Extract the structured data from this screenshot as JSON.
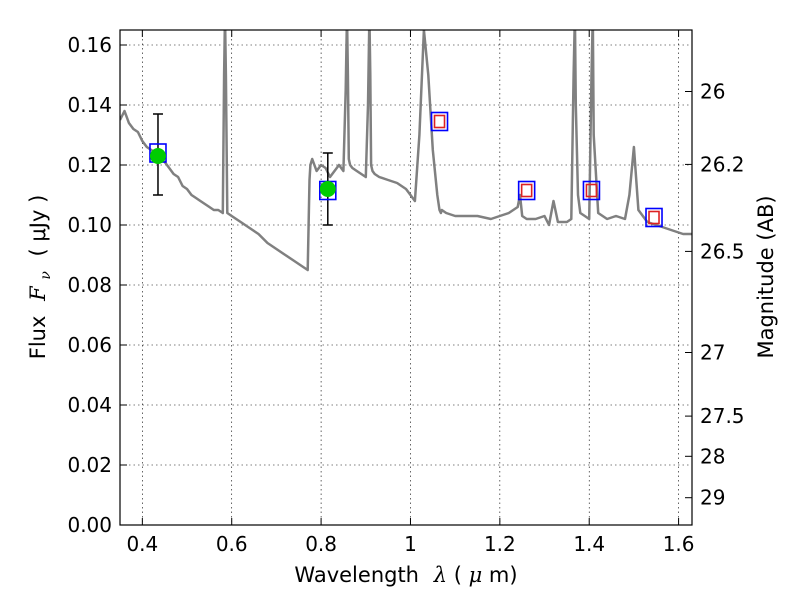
{
  "chart_data": {
    "type": "scatter",
    "title": "",
    "xlabel": {
      "prefix": "Wavelength",
      "symbol": "λ",
      "unit_open": " (",
      "unit_mu": "μ",
      "unit_rest": "m)"
    },
    "ylabel": {
      "prefix": "Flux",
      "symbol": "F",
      "subscript": "ν",
      "unit": "( μJy )"
    },
    "y2label": "Magnitude (AB)",
    "xlim": [
      0.35,
      1.63
    ],
    "ylim": [
      0.0,
      0.165
    ],
    "xticks": [
      0.4,
      0.6,
      0.8,
      1.0,
      1.2,
      1.4,
      1.6
    ],
    "xtick_labels": [
      "0.4",
      "0.6",
      "0.8",
      "1",
      "1.2",
      "1.4",
      "1.6"
    ],
    "yticks": [
      0.0,
      0.02,
      0.04,
      0.06,
      0.08,
      0.1,
      0.12,
      0.14,
      0.16
    ],
    "ytick_labels": [
      "0.00",
      "0.02",
      "0.04",
      "0.06",
      "0.08",
      "0.10",
      "0.12",
      "0.14",
      "0.16"
    ],
    "y2ticks": [
      {
        "flux": 0.1445,
        "label": "26"
      },
      {
        "flux": 0.1202,
        "label": "26.2"
      },
      {
        "flux": 0.0912,
        "label": "26.5"
      },
      {
        "flux": 0.0575,
        "label": "27"
      },
      {
        "flux": 0.0363,
        "label": "27.5"
      },
      {
        "flux": 0.0229,
        "label": "28"
      },
      {
        "flux": 0.0091,
        "label": "29"
      }
    ],
    "grid": true,
    "series": [
      {
        "type": "line",
        "color": "#808080",
        "x": [
          0.35,
          0.36,
          0.37,
          0.38,
          0.39,
          0.4,
          0.41,
          0.42,
          0.43,
          0.44,
          0.45,
          0.46,
          0.47,
          0.48,
          0.49,
          0.5,
          0.51,
          0.52,
          0.53,
          0.54,
          0.55,
          0.56,
          0.57,
          0.58,
          0.583,
          0.585,
          0.587,
          0.59,
          0.6,
          0.62,
          0.64,
          0.66,
          0.68,
          0.7,
          0.72,
          0.74,
          0.76,
          0.77,
          0.772,
          0.774,
          0.776,
          0.78,
          0.79,
          0.8,
          0.81,
          0.82,
          0.83,
          0.84,
          0.85,
          0.855,
          0.858,
          0.86,
          0.862,
          0.865,
          0.87,
          0.88,
          0.89,
          0.9,
          0.905,
          0.908,
          0.91,
          0.912,
          0.915,
          0.92,
          0.93,
          0.95,
          0.97,
          0.99,
          1.0,
          1.01,
          1.02,
          1.03,
          1.04,
          1.05,
          1.06,
          1.065,
          1.068,
          1.07,
          1.08,
          1.1,
          1.12,
          1.15,
          1.18,
          1.2,
          1.22,
          1.24,
          1.245,
          1.25,
          1.26,
          1.28,
          1.3,
          1.31,
          1.32,
          1.33,
          1.35,
          1.36,
          1.365,
          1.368,
          1.37,
          1.375,
          1.38,
          1.39,
          1.4,
          1.405,
          1.408,
          1.41,
          1.42,
          1.44,
          1.46,
          1.48,
          1.49,
          1.5,
          1.51,
          1.53,
          1.55,
          1.57,
          1.59,
          1.61,
          1.63
        ],
        "y": [
          0.135,
          0.138,
          0.134,
          0.132,
          0.131,
          0.128,
          0.126,
          0.125,
          0.124,
          0.122,
          0.121,
          0.119,
          0.117,
          0.116,
          0.113,
          0.112,
          0.11,
          0.109,
          0.108,
          0.107,
          0.106,
          0.105,
          0.105,
          0.104,
          0.15,
          0.17,
          0.15,
          0.104,
          0.103,
          0.101,
          0.099,
          0.097,
          0.094,
          0.092,
          0.09,
          0.088,
          0.086,
          0.085,
          0.1,
          0.115,
          0.12,
          0.122,
          0.118,
          0.12,
          0.119,
          0.116,
          0.118,
          0.12,
          0.118,
          0.145,
          0.17,
          0.15,
          0.122,
          0.12,
          0.119,
          0.118,
          0.117,
          0.116,
          0.14,
          0.17,
          0.15,
          0.12,
          0.118,
          0.117,
          0.116,
          0.115,
          0.114,
          0.112,
          0.11,
          0.108,
          0.13,
          0.165,
          0.15,
          0.125,
          0.11,
          0.105,
          0.104,
          0.105,
          0.104,
          0.103,
          0.103,
          0.103,
          0.102,
          0.103,
          0.104,
          0.106,
          0.11,
          0.103,
          0.102,
          0.102,
          0.103,
          0.1,
          0.108,
          0.101,
          0.101,
          0.102,
          0.15,
          0.17,
          0.14,
          0.11,
          0.104,
          0.103,
          0.102,
          0.15,
          0.17,
          0.13,
          0.104,
          0.102,
          0.103,
          0.102,
          0.11,
          0.126,
          0.105,
          0.101,
          0.1,
          0.099,
          0.098,
          0.097,
          0.097
        ]
      },
      {
        "type": "measured",
        "marker": "circle",
        "color": "#00cc00",
        "x": [
          0.435,
          0.815
        ],
        "y": [
          0.123,
          0.112
        ],
        "yerr_low": [
          0.11,
          0.1
        ],
        "yerr_high": [
          0.137,
          0.124
        ]
      },
      {
        "type": "model_blue_squares",
        "marker": "square",
        "color": "#0000ff",
        "x": [
          0.435,
          0.815,
          1.065,
          1.26,
          1.405,
          1.545
        ],
        "y": [
          0.124,
          0.1115,
          0.1345,
          0.1115,
          0.1115,
          0.1025
        ]
      },
      {
        "type": "model_red_squares",
        "marker": "square",
        "color": "#dd2222",
        "x": [
          1.065,
          1.26,
          1.405,
          1.545
        ],
        "y": [
          0.1345,
          0.1115,
          0.1115,
          0.1025
        ]
      }
    ]
  }
}
